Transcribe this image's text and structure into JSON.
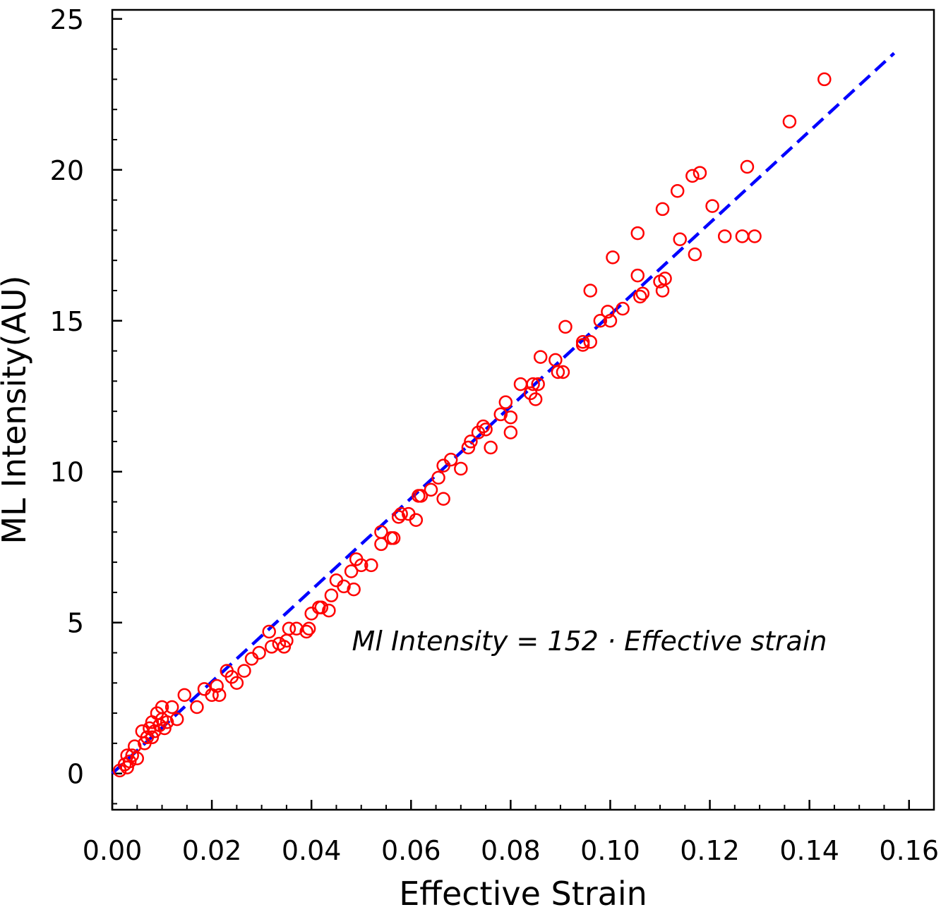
{
  "chart_data": {
    "type": "scatter",
    "xlabel": "Effective Strain",
    "ylabel": "ML Intensity(AU)",
    "xlim": [
      0.0,
      0.165
    ],
    "ylim": [
      -1.2,
      25.3
    ],
    "xticks": [
      0.0,
      0.02,
      0.04,
      0.06,
      0.08,
      0.1,
      0.12,
      0.14,
      0.16
    ],
    "xtick_labels": [
      "0.00",
      "0.02",
      "0.04",
      "0.06",
      "0.08",
      "0.10",
      "0.12",
      "0.14",
      "0.16"
    ],
    "yticks": [
      0,
      5,
      10,
      15,
      20,
      25
    ],
    "ytick_labels": [
      "0",
      "5",
      "10",
      "15",
      "20",
      "25"
    ],
    "x_minor_step": 0.005,
    "y_minor_step": 1,
    "grid": false,
    "annotation": "Ml Intensity = 152 · Effective strain",
    "fit_line": {
      "slope": 152,
      "x_range": [
        0.0,
        0.157
      ],
      "color": "#0000ff",
      "style": "dashed"
    },
    "marker_color": "#ff0000",
    "points": [
      [
        0.0015,
        0.1
      ],
      [
        0.0025,
        0.3
      ],
      [
        0.003,
        0.2
      ],
      [
        0.0035,
        0.4
      ],
      [
        0.004,
        0.6
      ],
      [
        0.0045,
        0.9
      ],
      [
        0.005,
        0.5
      ],
      [
        0.003,
        0.6
      ],
      [
        0.006,
        1.4
      ],
      [
        0.0065,
        1.0
      ],
      [
        0.007,
        1.2
      ],
      [
        0.0075,
        1.5
      ],
      [
        0.008,
        1.2
      ],
      [
        0.008,
        1.7
      ],
      [
        0.0085,
        1.4
      ],
      [
        0.009,
        2.0
      ],
      [
        0.0095,
        1.6
      ],
      [
        0.01,
        1.8
      ],
      [
        0.01,
        2.2
      ],
      [
        0.0105,
        1.5
      ],
      [
        0.011,
        1.7
      ],
      [
        0.012,
        2.2
      ],
      [
        0.013,
        1.8
      ],
      [
        0.0145,
        2.6
      ],
      [
        0.017,
        2.2
      ],
      [
        0.0185,
        2.8
      ],
      [
        0.02,
        2.6
      ],
      [
        0.021,
        2.9
      ],
      [
        0.0215,
        2.6
      ],
      [
        0.023,
        3.4
      ],
      [
        0.024,
        3.2
      ],
      [
        0.025,
        3.0
      ],
      [
        0.0265,
        3.4
      ],
      [
        0.028,
        3.8
      ],
      [
        0.0295,
        4.0
      ],
      [
        0.0315,
        4.7
      ],
      [
        0.032,
        4.2
      ],
      [
        0.0335,
        4.3
      ],
      [
        0.0345,
        4.2
      ],
      [
        0.035,
        4.4
      ],
      [
        0.0355,
        4.8
      ],
      [
        0.037,
        4.8
      ],
      [
        0.039,
        4.7
      ],
      [
        0.0395,
        4.8
      ],
      [
        0.04,
        5.3
      ],
      [
        0.0415,
        5.5
      ],
      [
        0.042,
        5.5
      ],
      [
        0.0435,
        5.4
      ],
      [
        0.044,
        5.9
      ],
      [
        0.045,
        6.4
      ],
      [
        0.0465,
        6.2
      ],
      [
        0.048,
        6.7
      ],
      [
        0.0485,
        6.1
      ],
      [
        0.049,
        7.1
      ],
      [
        0.05,
        6.9
      ],
      [
        0.052,
        6.9
      ],
      [
        0.054,
        7.6
      ],
      [
        0.054,
        8.0
      ],
      [
        0.056,
        7.8
      ],
      [
        0.0565,
        7.8
      ],
      [
        0.0575,
        8.5
      ],
      [
        0.058,
        8.6
      ],
      [
        0.0595,
        8.6
      ],
      [
        0.061,
        8.4
      ],
      [
        0.0615,
        9.2
      ],
      [
        0.062,
        9.2
      ],
      [
        0.064,
        9.4
      ],
      [
        0.0655,
        9.8
      ],
      [
        0.0665,
        10.2
      ],
      [
        0.0665,
        9.1
      ],
      [
        0.068,
        10.4
      ],
      [
        0.07,
        10.1
      ],
      [
        0.0715,
        10.8
      ],
      [
        0.072,
        11.0
      ],
      [
        0.0735,
        11.3
      ],
      [
        0.0745,
        11.5
      ],
      [
        0.075,
        11.4
      ],
      [
        0.076,
        10.8
      ],
      [
        0.078,
        11.9
      ],
      [
        0.079,
        12.3
      ],
      [
        0.08,
        11.3
      ],
      [
        0.08,
        11.8
      ],
      [
        0.082,
        12.9
      ],
      [
        0.084,
        12.6
      ],
      [
        0.0845,
        12.9
      ],
      [
        0.085,
        12.4
      ],
      [
        0.0855,
        12.9
      ],
      [
        0.086,
        13.8
      ],
      [
        0.089,
        13.7
      ],
      [
        0.0895,
        13.3
      ],
      [
        0.0905,
        13.3
      ],
      [
        0.091,
        14.8
      ],
      [
        0.0945,
        14.3
      ],
      [
        0.0945,
        14.2
      ],
      [
        0.096,
        16.0
      ],
      [
        0.096,
        14.3
      ],
      [
        0.098,
        15.0
      ],
      [
        0.0995,
        15.3
      ],
      [
        0.1,
        15.0
      ],
      [
        0.1005,
        17.1
      ],
      [
        0.1025,
        15.4
      ],
      [
        0.1055,
        17.9
      ],
      [
        0.1055,
        16.5
      ],
      [
        0.106,
        15.8
      ],
      [
        0.1065,
        15.9
      ],
      [
        0.11,
        16.3
      ],
      [
        0.1105,
        16.0
      ],
      [
        0.1105,
        18.7
      ],
      [
        0.111,
        16.4
      ],
      [
        0.1135,
        19.3
      ],
      [
        0.114,
        17.7
      ],
      [
        0.1165,
        19.8
      ],
      [
        0.117,
        17.2
      ],
      [
        0.118,
        19.9
      ],
      [
        0.1205,
        18.8
      ],
      [
        0.123,
        17.8
      ],
      [
        0.1265,
        17.8
      ],
      [
        0.1275,
        20.1
      ],
      [
        0.129,
        17.8
      ],
      [
        0.136,
        21.6
      ],
      [
        0.143,
        23.0
      ]
    ]
  }
}
